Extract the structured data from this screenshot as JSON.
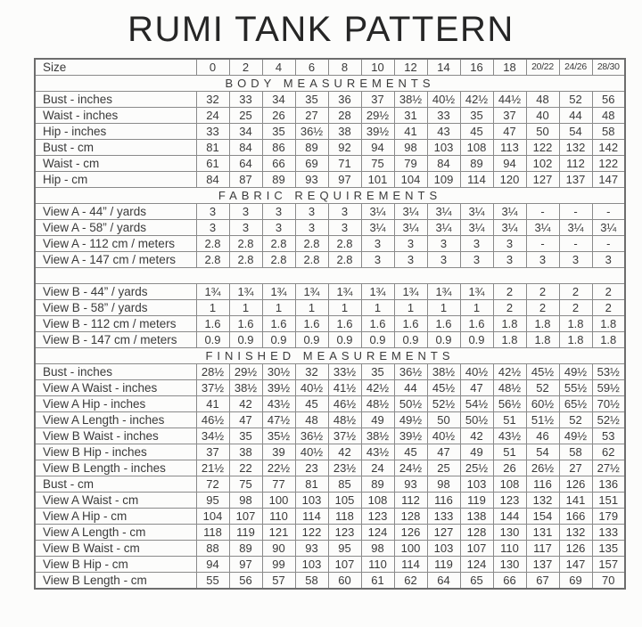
{
  "title": "RUMI TANK PATTERN",
  "table": {
    "size_header_label": "Size",
    "sizes": [
      "0",
      "2",
      "4",
      "6",
      "8",
      "10",
      "12",
      "14",
      "16",
      "18",
      "20/22",
      "24/26",
      "28/30"
    ],
    "sections": [
      {
        "heading": "BODY MEASUREMENTS",
        "rows": [
          {
            "label": "Bust - inches",
            "values": [
              "32",
              "33",
              "34",
              "35",
              "36",
              "37",
              "38½",
              "40½",
              "42½",
              "44½",
              "48",
              "52",
              "56"
            ]
          },
          {
            "label": "Waist - inches",
            "values": [
              "24",
              "25",
              "26",
              "27",
              "28",
              "29½",
              "31",
              "33",
              "35",
              "37",
              "40",
              "44",
              "48"
            ]
          },
          {
            "label": "Hip - inches",
            "values": [
              "33",
              "34",
              "35",
              "36½",
              "38",
              "39½",
              "41",
              "43",
              "45",
              "47",
              "50",
              "54",
              "58"
            ]
          },
          {
            "label": "Bust - cm",
            "values": [
              "81",
              "84",
              "86",
              "89",
              "92",
              "94",
              "98",
              "103",
              "108",
              "113",
              "122",
              "132",
              "142"
            ]
          },
          {
            "label": "Waist - cm",
            "values": [
              "61",
              "64",
              "66",
              "69",
              "71",
              "75",
              "79",
              "84",
              "89",
              "94",
              "102",
              "112",
              "122"
            ]
          },
          {
            "label": "Hip - cm",
            "values": [
              "84",
              "87",
              "89",
              "93",
              "97",
              "101",
              "104",
              "109",
              "114",
              "120",
              "127",
              "137",
              "147"
            ]
          }
        ]
      },
      {
        "heading": "FABRIC REQUIREMENTS",
        "rows": [
          {
            "label": "View A - 44” / yards",
            "values": [
              "3",
              "3",
              "3",
              "3",
              "3",
              "3¼",
              "3¼",
              "3¼",
              "3¼",
              "3¼",
              "-",
              "-",
              "-"
            ]
          },
          {
            "label": "View A - 58” / yards",
            "values": [
              "3",
              "3",
              "3",
              "3",
              "3",
              "3¼",
              "3¼",
              "3¼",
              "3¼",
              "3¼",
              "3¼",
              "3¼",
              "3¼"
            ]
          },
          {
            "label": "View A - 112 cm / meters",
            "values": [
              "2.8",
              "2.8",
              "2.8",
              "2.8",
              "2.8",
              "3",
              "3",
              "3",
              "3",
              "3",
              "-",
              "-",
              "-"
            ]
          },
          {
            "label": "View A - 147 cm / meters",
            "values": [
              "2.8",
              "2.8",
              "2.8",
              "2.8",
              "2.8",
              "3",
              "3",
              "3",
              "3",
              "3",
              "3",
              "3",
              "3"
            ]
          },
          {
            "spacer": true
          },
          {
            "label": "View B - 44” / yards",
            "values": [
              "1¾",
              "1¾",
              "1¾",
              "1¾",
              "1¾",
              "1¾",
              "1¾",
              "1¾",
              "1¾",
              "2",
              "2",
              "2",
              "2"
            ]
          },
          {
            "label": "View B - 58” / yards",
            "values": [
              "1",
              "1",
              "1",
              "1",
              "1",
              "1",
              "1",
              "1",
              "1",
              "2",
              "2",
              "2",
              "2"
            ]
          },
          {
            "label": "View B - 112 cm / meters",
            "values": [
              "1.6",
              "1.6",
              "1.6",
              "1.6",
              "1.6",
              "1.6",
              "1.6",
              "1.6",
              "1.6",
              "1.8",
              "1.8",
              "1.8",
              "1.8"
            ]
          },
          {
            "label": "View B - 147 cm / meters",
            "values": [
              "0.9",
              "0.9",
              "0.9",
              "0.9",
              "0.9",
              "0.9",
              "0.9",
              "0.9",
              "0.9",
              "1.8",
              "1.8",
              "1.8",
              "1.8"
            ]
          }
        ]
      },
      {
        "heading": "FINISHED MEASUREMENTS",
        "rows": [
          {
            "label": "Bust - inches",
            "values": [
              "28½",
              "29½",
              "30½",
              "32",
              "33½",
              "35",
              "36½",
              "38½",
              "40½",
              "42½",
              "45½",
              "49½",
              "53½"
            ]
          },
          {
            "label": "View A Waist - inches",
            "values": [
              "37½",
              "38½",
              "39½",
              "40½",
              "41½",
              "42½",
              "44",
              "45½",
              "47",
              "48½",
              "52",
              "55½",
              "59½"
            ]
          },
          {
            "label": "View A Hip - inches",
            "values": [
              "41",
              "42",
              "43½",
              "45",
              "46½",
              "48½",
              "50½",
              "52½",
              "54½",
              "56½",
              "60½",
              "65½",
              "70½"
            ]
          },
          {
            "label": "View A Length - inches",
            "values": [
              "46½",
              "47",
              "47½",
              "48",
              "48½",
              "49",
              "49½",
              "50",
              "50½",
              "51",
              "51½",
              "52",
              "52½"
            ]
          },
          {
            "label": "View B Waist - inches",
            "values": [
              "34½",
              "35",
              "35½",
              "36½",
              "37½",
              "38½",
              "39½",
              "40½",
              "42",
              "43½",
              "46",
              "49½",
              "53"
            ]
          },
          {
            "label": "View B Hip - inches",
            "values": [
              "37",
              "38",
              "39",
              "40½",
              "42",
              "43½",
              "45",
              "47",
              "49",
              "51",
              "54",
              "58",
              "62"
            ]
          },
          {
            "label": "View B Length - inches",
            "values": [
              "21½",
              "22",
              "22½",
              "23",
              "23½",
              "24",
              "24½",
              "25",
              "25½",
              "26",
              "26½",
              "27",
              "27½"
            ]
          },
          {
            "label": "Bust - cm",
            "values": [
              "72",
              "75",
              "77",
              "81",
              "85",
              "89",
              "93",
              "98",
              "103",
              "108",
              "116",
              "126",
              "136"
            ]
          },
          {
            "label": "View A Waist - cm",
            "values": [
              "95",
              "98",
              "100",
              "103",
              "105",
              "108",
              "112",
              "116",
              "119",
              "123",
              "132",
              "141",
              "151"
            ]
          },
          {
            "label": "View A Hip - cm",
            "values": [
              "104",
              "107",
              "110",
              "114",
              "118",
              "123",
              "128",
              "133",
              "138",
              "144",
              "154",
              "166",
              "179"
            ]
          },
          {
            "label": "View A Length - cm",
            "values": [
              "118",
              "119",
              "121",
              "122",
              "123",
              "124",
              "126",
              "127",
              "128",
              "130",
              "131",
              "132",
              "133"
            ]
          },
          {
            "label": "View B Waist - cm",
            "values": [
              "88",
              "89",
              "90",
              "93",
              "95",
              "98",
              "100",
              "103",
              "107",
              "110",
              "117",
              "126",
              "135"
            ]
          },
          {
            "label": "View B Hip - cm",
            "values": [
              "94",
              "97",
              "99",
              "103",
              "107",
              "110",
              "114",
              "119",
              "124",
              "130",
              "137",
              "147",
              "157"
            ]
          },
          {
            "label": "View B Length - cm",
            "values": [
              "55",
              "56",
              "57",
              "58",
              "60",
              "61",
              "62",
              "64",
              "65",
              "66",
              "67",
              "69",
              "70"
            ]
          }
        ]
      }
    ]
  }
}
